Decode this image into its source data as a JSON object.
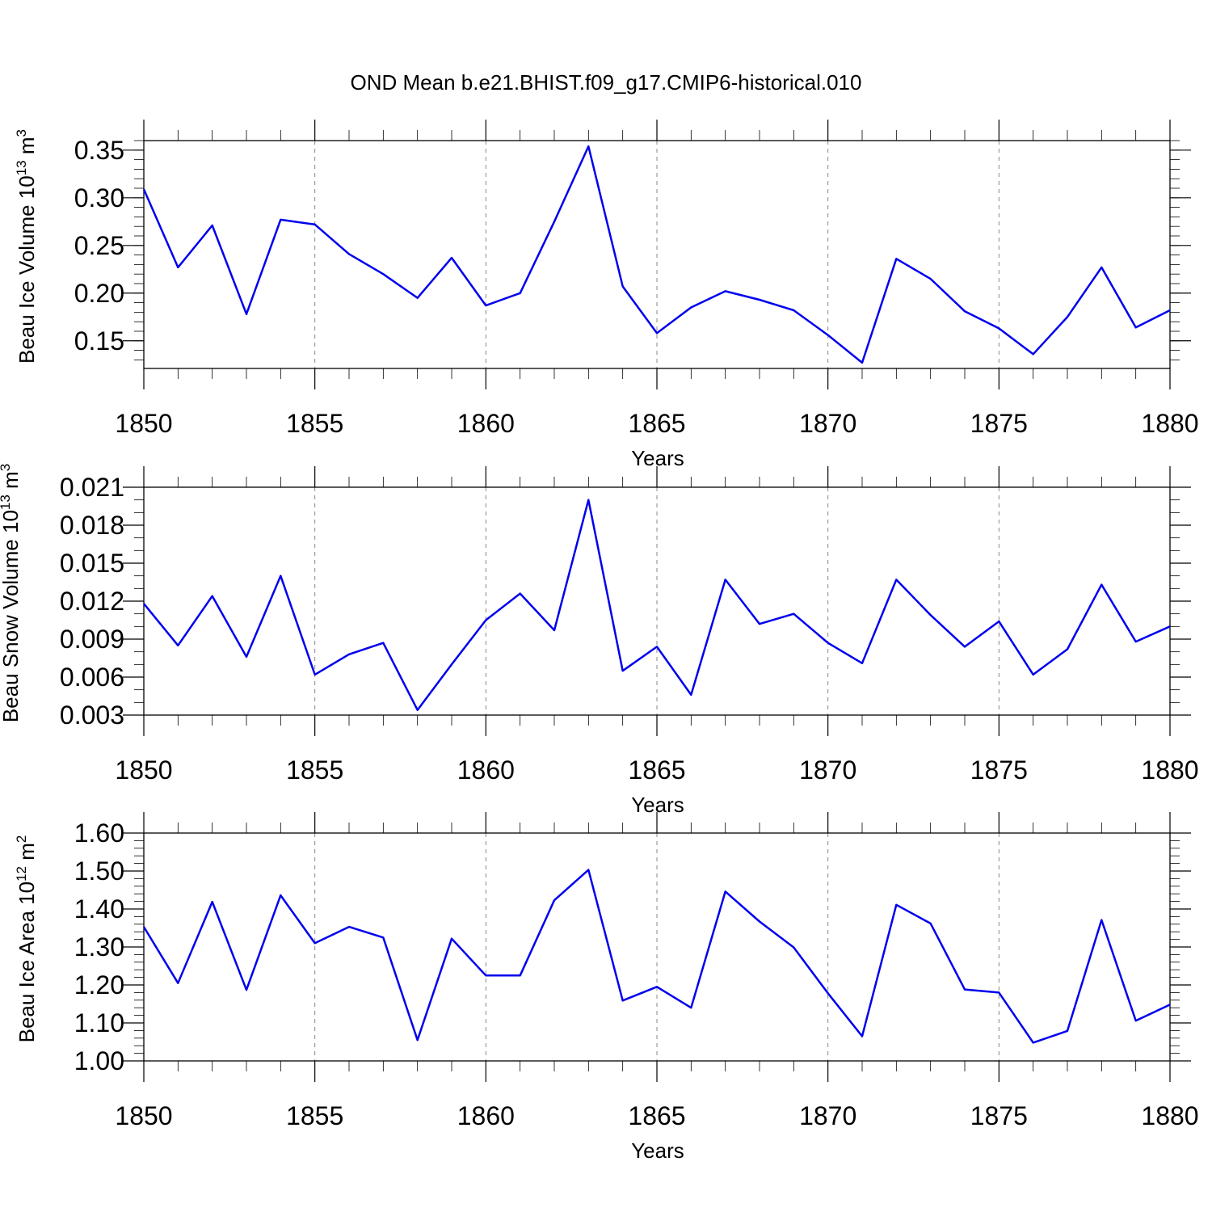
{
  "figure_title": "OND Mean b.e21.BHIST.f09_g17.CMIP6-historical.010",
  "colors": {
    "series": "#0000ee",
    "axes": "#000000",
    "grid": "#888888"
  },
  "chart_data": [
    {
      "type": "line",
      "title": "",
      "xlabel": "Years",
      "ylabel_main": "Beau Ice Volume 10",
      "ylabel_exp": "13",
      "ylabel_unit": " m",
      "ylabel_unit_exp": "3",
      "x_ticks": [
        "1850",
        "1855",
        "1860",
        "1865",
        "1870",
        "1875",
        "1880"
      ],
      "y_ticks": [
        "0.15",
        "0.20",
        "0.25",
        "0.30",
        "0.35"
      ],
      "ylim": [
        0.121,
        0.36
      ],
      "xlim": [
        1850,
        1880
      ],
      "grid": "vertical dashed",
      "series": [
        {
          "name": "Beau Ice Volume",
          "x": [
            1850,
            1851,
            1852,
            1853,
            1854,
            1855,
            1856,
            1857,
            1858,
            1859,
            1860,
            1861,
            1862,
            1863,
            1864,
            1865,
            1866,
            1867,
            1868,
            1869,
            1870,
            1871,
            1872,
            1873,
            1874,
            1875,
            1876,
            1877,
            1878,
            1879,
            1880
          ],
          "values": [
            0.309,
            0.227,
            0.271,
            0.178,
            0.277,
            0.272,
            0.241,
            0.22,
            0.195,
            0.237,
            0.187,
            0.2,
            0.275,
            0.354,
            0.207,
            0.158,
            0.185,
            0.202,
            0.193,
            0.182,
            0.156,
            0.127,
            0.236,
            0.215,
            0.181,
            0.163,
            0.136,
            0.175,
            0.227,
            0.164,
            0.182
          ]
        }
      ]
    },
    {
      "type": "line",
      "title": "",
      "xlabel": "Years",
      "ylabel_main": "Beau Snow Volume 10",
      "ylabel_exp": "13",
      "ylabel_unit": " m",
      "ylabel_unit_exp": "3",
      "x_ticks": [
        "1850",
        "1855",
        "1860",
        "1865",
        "1870",
        "1875",
        "1880"
      ],
      "y_ticks": [
        "0.003",
        "0.006",
        "0.009",
        "0.012",
        "0.015",
        "0.018",
        "0.021"
      ],
      "ylim": [
        0.003,
        0.021
      ],
      "xlim": [
        1850,
        1880
      ],
      "grid": "vertical dashed",
      "series": [
        {
          "name": "Beau Snow Volume",
          "x": [
            1850,
            1851,
            1852,
            1853,
            1854,
            1855,
            1856,
            1857,
            1858,
            1859,
            1860,
            1861,
            1862,
            1863,
            1864,
            1865,
            1866,
            1867,
            1868,
            1869,
            1870,
            1871,
            1872,
            1873,
            1874,
            1875,
            1876,
            1877,
            1878,
            1879,
            1880
          ],
          "values": [
            0.0118,
            0.0085,
            0.0124,
            0.0076,
            0.014,
            0.0062,
            0.0078,
            0.0087,
            0.0034,
            0.007,
            0.0105,
            0.0126,
            0.0097,
            0.02,
            0.0065,
            0.0084,
            0.0046,
            0.0137,
            0.0102,
            0.011,
            0.0087,
            0.0071,
            0.0137,
            0.0109,
            0.0084,
            0.0104,
            0.0062,
            0.0082,
            0.0133,
            0.0088,
            0.01
          ]
        }
      ]
    },
    {
      "type": "line",
      "title": "",
      "xlabel": "Years",
      "ylabel_main": "Beau Ice Area 10",
      "ylabel_exp": "12",
      "ylabel_unit": " m",
      "ylabel_unit_exp": "2",
      "x_ticks": [
        "1850",
        "1855",
        "1860",
        "1865",
        "1870",
        "1875",
        "1880"
      ],
      "y_ticks": [
        "1.00",
        "1.10",
        "1.20",
        "1.30",
        "1.40",
        "1.50",
        "1.60"
      ],
      "ylim": [
        1.0,
        1.6
      ],
      "xlim": [
        1850,
        1880
      ],
      "grid": "vertical dashed",
      "series": [
        {
          "name": "Beau Ice Area",
          "x": [
            1850,
            1851,
            1852,
            1853,
            1854,
            1855,
            1856,
            1857,
            1858,
            1859,
            1860,
            1861,
            1862,
            1863,
            1864,
            1865,
            1866,
            1867,
            1868,
            1869,
            1870,
            1871,
            1872,
            1873,
            1874,
            1875,
            1876,
            1877,
            1878,
            1879,
            1880
          ],
          "values": [
            1.353,
            1.205,
            1.419,
            1.187,
            1.436,
            1.31,
            1.353,
            1.325,
            1.055,
            1.322,
            1.225,
            1.225,
            1.423,
            1.503,
            1.159,
            1.195,
            1.14,
            1.446,
            1.367,
            1.299,
            1.178,
            1.065,
            1.411,
            1.362,
            1.188,
            1.18,
            1.048,
            1.079,
            1.371,
            1.106,
            1.148
          ]
        }
      ]
    }
  ]
}
